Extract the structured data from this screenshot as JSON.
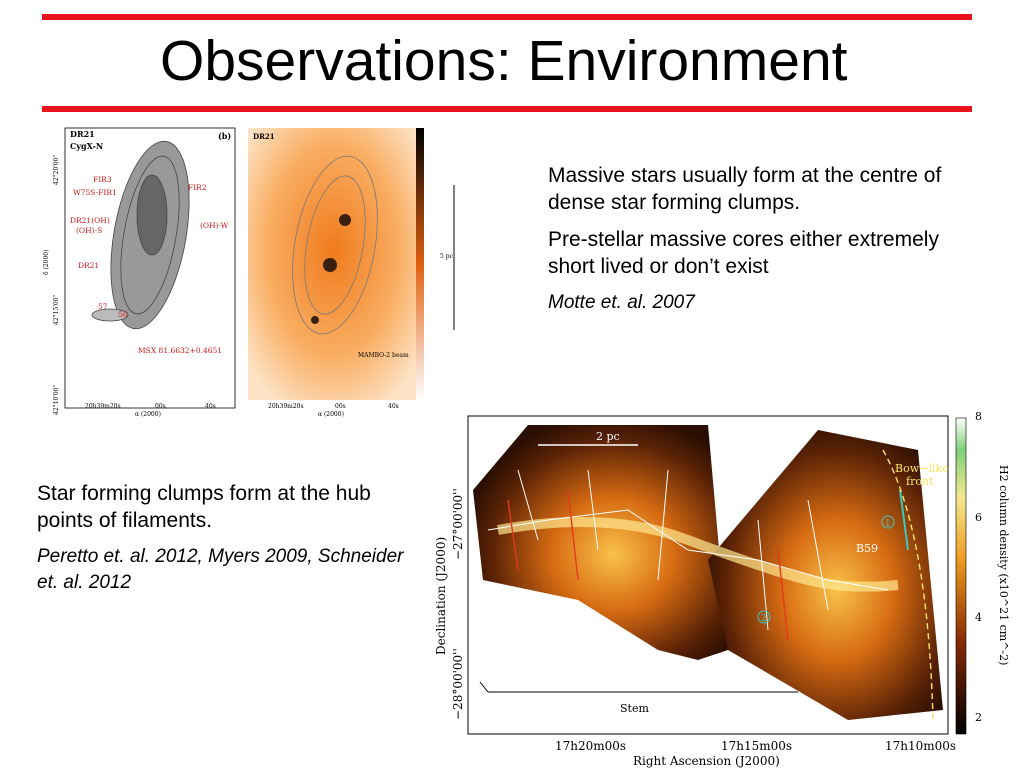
{
  "title": "Observations: Environment",
  "top_right": {
    "paragraphs": [
      "Massive stars usually form at the centre of dense star forming clumps.",
      "Pre-stellar massive cores either extremely short lived or don’t exist"
    ],
    "citation": "Motte et. al. 2007"
  },
  "bottom_left": {
    "paragraphs": [
      "Star forming clumps form at the hub points of filaments."
    ],
    "citation": "Peretto et. al. 2012, Myers 2009, Schneider et. al. 2012"
  },
  "figure_top": {
    "panel_left": {
      "name": "DR21",
      "region": "CygX-N",
      "tag": "(b)",
      "sources": [
        "FIR3",
        "W75S-FIR1",
        "DR21(OH)",
        "(OH)-S",
        "DR21",
        "FIR2",
        "(OH)-W",
        "57",
        "56",
        "MSX 81.6632+0.4651"
      ],
      "y_label": "δ (2000)",
      "x_label": "α (2000)",
      "x_ticks": [
        "20h39m20s",
        "00s",
        "40s"
      ],
      "y_ticks": [
        "42°20'00\"",
        "42°15'00\"",
        "42°10'00\""
      ]
    },
    "panel_right": {
      "name": "DR21",
      "beam": "MAMBO-2 beam",
      "x_label": "α (2000)",
      "x_ticks": [
        "20h39m20s",
        "00s",
        "40s"
      ],
      "scale": "5 pc"
    }
  },
  "figure_bottom": {
    "scale": "2 pc",
    "annotations": [
      "Bow−like",
      "front",
      "B59",
      "Stem"
    ],
    "markers": [
      "1",
      "2"
    ],
    "y_label": "Declination (J2000)",
    "x_label": "Right Ascension (J2000)",
    "x_ticks": [
      "17h20m00s",
      "17h15m00s",
      "17h10m00s"
    ],
    "y_ticks": [
      "−27°00'00''",
      "−28°00'00''"
    ],
    "colorbar_ticks": [
      8,
      6,
      4,
      2
    ],
    "colorbar_label": "H2 column density (x10^21 cm^-2)"
  }
}
